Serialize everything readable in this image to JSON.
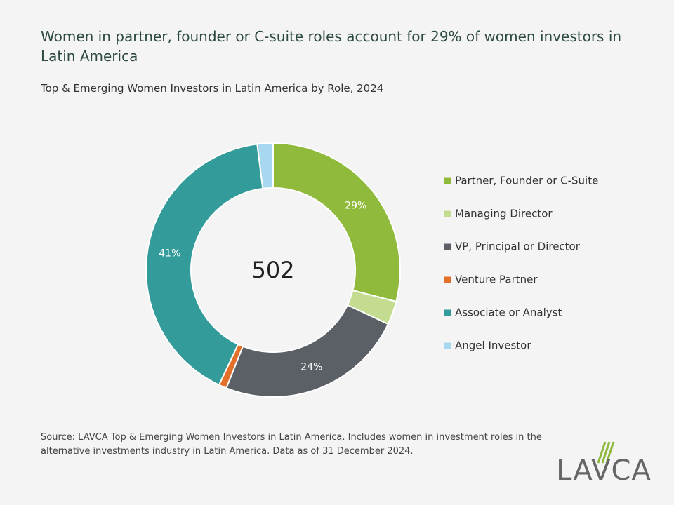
{
  "chart_data": {
    "type": "donut",
    "title": "Women in partner, founder or C-suite roles account for 29% of women investors in Latin America",
    "subtitle": "Top & Emerging Women Investors in Latin America by Role, 2024",
    "center_label": "502",
    "categories": [
      "Partner, Founder or C-Suite",
      "Managing Director",
      "VP, Principal or Director",
      "Venture Partner",
      "Associate or Analyst",
      "Angel Investor"
    ],
    "values": [
      29,
      3,
      24,
      1,
      41,
      2
    ],
    "value_labels": [
      "29%",
      null,
      "24%",
      null,
      "41%",
      null
    ],
    "colors": [
      "#8fba3c",
      "#c3dc8f",
      "#5b5f66",
      "#e2702a",
      "#339c9a",
      "#a8d8ef"
    ],
    "legend": "right",
    "source": "Source: LAVCA Top & Emerging Women Investors in Latin America. Includes women in investment roles in the alternative investments industry in Latin America. Data as of 31 December 2024.",
    "logo": "LAVCA"
  }
}
